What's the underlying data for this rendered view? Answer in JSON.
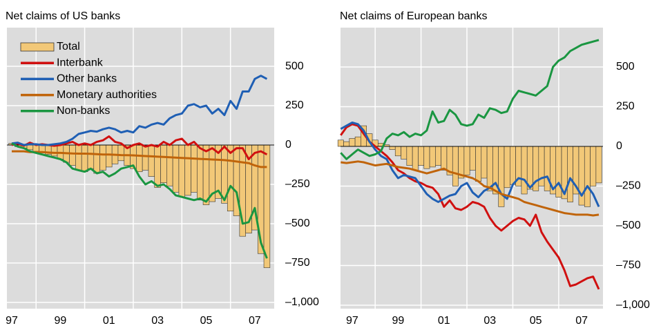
{
  "chart_data": [
    {
      "type": "bar_line",
      "title": "Net claims of US banks",
      "legend": "upper left",
      "x": [
        1997,
        1997.25,
        1997.5,
        1997.75,
        1998,
        1998.25,
        1998.5,
        1998.75,
        1999,
        1999.25,
        1999.5,
        1999.75,
        2000,
        2000.25,
        2000.5,
        2000.75,
        2001,
        2001.25,
        2001.5,
        2001.75,
        2002,
        2002.25,
        2002.5,
        2002.75,
        2003,
        2003.25,
        2003.5,
        2003.75,
        2004,
        2004.25,
        2004.5,
        2004.75,
        2005,
        2005.25,
        2005.5,
        2005.75,
        2006,
        2006.25,
        2006.5,
        2006.75,
        2007,
        2007.25,
        2007.5
      ],
      "xlim": [
        1996.8,
        2007.8
      ],
      "xticks": [
        {
          "value": 1997,
          "label": "97"
        },
        {
          "value": 1999,
          "label": "99"
        },
        {
          "value": 2001,
          "label": "01"
        },
        {
          "value": 2003,
          "label": "03"
        },
        {
          "value": 2005,
          "label": "05"
        },
        {
          "value": 2007,
          "label": "07"
        }
      ],
      "xgrid": [
        1998,
        2000,
        2002,
        2004,
        2006
      ],
      "ylim": [
        -1040,
        746
      ],
      "yticks": [
        500,
        250,
        0,
        {
          "value": -250,
          "label": "–250"
        },
        {
          "value": -500,
          "label": "–500"
        },
        {
          "value": -750,
          "label": "–750"
        },
        {
          "value": -1000,
          "label": "–1,000"
        }
      ],
      "series": [
        {
          "name": "Total",
          "type": "bar",
          "color": "#f2c878",
          "values": [
            10,
            -10,
            -20,
            -30,
            -40,
            -50,
            -60,
            -70,
            -90,
            -110,
            -130,
            -160,
            -170,
            -150,
            -180,
            -160,
            -140,
            -120,
            -100,
            -130,
            -150,
            -170,
            -160,
            -200,
            -270,
            -240,
            -260,
            -300,
            -330,
            -320,
            -300,
            -350,
            -380,
            -360,
            -340,
            -370,
            -420,
            -450,
            -580,
            -560,
            -540,
            -690,
            -780
          ]
        },
        {
          "name": "Interbank",
          "type": "line",
          "color": "#d01010",
          "values": [
            0,
            10,
            -5,
            15,
            0,
            5,
            0,
            -5,
            0,
            10,
            20,
            0,
            10,
            0,
            20,
            30,
            55,
            20,
            10,
            -20,
            0,
            10,
            -10,
            0,
            -10,
            20,
            0,
            30,
            40,
            0,
            20,
            -20,
            -40,
            -20,
            -50,
            -10,
            -50,
            -20,
            -20,
            -90,
            -50,
            -40,
            -60
          ]
        },
        {
          "name": "Other banks",
          "type": "line",
          "color": "#1f5fb4",
          "values": [
            10,
            15,
            0,
            5,
            5,
            0,
            0,
            5,
            10,
            20,
            40,
            70,
            80,
            90,
            85,
            100,
            110,
            100,
            80,
            90,
            80,
            120,
            110,
            130,
            140,
            130,
            170,
            190,
            200,
            250,
            260,
            240,
            250,
            200,
            230,
            190,
            280,
            230,
            340,
            340,
            420,
            440,
            420
          ]
        },
        {
          "name": "Monetary authorities",
          "type": "line",
          "color": "#c0640a",
          "values": [
            -40,
            -40,
            -40,
            -45,
            -45,
            -45,
            -48,
            -50,
            -50,
            -52,
            -54,
            -55,
            -55,
            -56,
            -58,
            -60,
            -60,
            -62,
            -64,
            -65,
            -66,
            -68,
            -70,
            -72,
            -74,
            -76,
            -78,
            -80,
            -82,
            -84,
            -86,
            -88,
            -90,
            -92,
            -94,
            -96,
            -100,
            -105,
            -110,
            -115,
            -130,
            -140,
            -140
          ]
        },
        {
          "name": "Non-banks",
          "type": "line",
          "color": "#1a9641",
          "values": [
            10,
            -10,
            -20,
            -40,
            -50,
            -60,
            -70,
            -80,
            -90,
            -110,
            -150,
            -160,
            -170,
            -150,
            -180,
            -170,
            -200,
            -180,
            -150,
            -140,
            -130,
            -200,
            -250,
            -230,
            -260,
            -250,
            -280,
            -320,
            -330,
            -340,
            -350,
            -340,
            -360,
            -310,
            -290,
            -350,
            -260,
            -300,
            -500,
            -490,
            -400,
            -620,
            -720
          ]
        }
      ]
    },
    {
      "type": "bar_line",
      "title": "Net claims of European banks",
      "x": [
        1996.5,
        1996.75,
        1997,
        1997.25,
        1997.5,
        1997.75,
        1998,
        1998.25,
        1998.5,
        1998.75,
        1999,
        1999.25,
        1999.5,
        1999.75,
        2000,
        2000.25,
        2000.5,
        2000.75,
        2001,
        2001.25,
        2001.5,
        2001.75,
        2002,
        2002.25,
        2002.5,
        2002.75,
        2003,
        2003.25,
        2003.5,
        2003.75,
        2004,
        2004.25,
        2004.5,
        2004.75,
        2005,
        2005.25,
        2005.5,
        2005.75,
        2006,
        2006.25,
        2006.5,
        2006.75,
        2007,
        2007.25,
        2007.5,
        2007.75
      ],
      "xlim": [
        1996.49,
        2007.93
      ],
      "xticks": [
        {
          "value": 1997,
          "label": "97"
        },
        {
          "value": 1999,
          "label": "99"
        },
        {
          "value": 2001,
          "label": "01"
        },
        {
          "value": 2003,
          "label": "03"
        },
        {
          "value": 2005,
          "label": "05"
        },
        {
          "value": 2007,
          "label": "07"
        }
      ],
      "xgrid": [
        1998,
        2000,
        2002,
        2004,
        2006
      ],
      "ylim": [
        -1022,
        748
      ],
      "yticks": [
        500,
        250,
        0,
        {
          "value": -250,
          "label": "–250"
        },
        {
          "value": -500,
          "label": "–500"
        },
        {
          "value": -750,
          "label": "–750"
        },
        {
          "value": -1000,
          "label": "–1,000"
        }
      ],
      "series": [
        {
          "name": "Total",
          "type": "bar",
          "color": "#f2c878",
          "values": [
            40,
            30,
            50,
            60,
            130,
            80,
            40,
            20,
            10,
            -20,
            -60,
            -80,
            -120,
            -150,
            -120,
            -140,
            -130,
            -120,
            -150,
            -180,
            -250,
            -200,
            -180,
            -150,
            -220,
            -200,
            -280,
            -300,
            -380,
            -260,
            -240,
            -250,
            -300,
            -270,
            -280,
            -250,
            -280,
            -300,
            -320,
            -330,
            -350,
            -300,
            -370,
            -380,
            -250,
            -230
          ]
        },
        {
          "name": "Interbank",
          "type": "line",
          "color": "#d01010",
          "values": [
            70,
            120,
            140,
            130,
            80,
            30,
            0,
            -30,
            -60,
            -100,
            -150,
            -170,
            -200,
            -220,
            -230,
            -250,
            -260,
            -300,
            -380,
            -340,
            -390,
            -400,
            -380,
            -350,
            -360,
            -380,
            -450,
            -500,
            -530,
            -500,
            -470,
            -450,
            -460,
            -500,
            -430,
            -540,
            -600,
            -650,
            -700,
            -780,
            -880,
            -870,
            -850,
            -830,
            -820,
            -900
          ]
        },
        {
          "name": "Other banks",
          "type": "line",
          "color": "#1f5fb4",
          "values": [
            110,
            130,
            150,
            140,
            100,
            30,
            -20,
            -60,
            -80,
            -150,
            -200,
            -180,
            -190,
            -200,
            -250,
            -300,
            -330,
            -350,
            -330,
            -310,
            -300,
            -250,
            -230,
            -290,
            -320,
            -280,
            -260,
            -230,
            -300,
            -330,
            -240,
            -200,
            -210,
            -260,
            -220,
            -200,
            -190,
            -270,
            -230,
            -300,
            -200,
            -250,
            -310,
            -250,
            -300,
            -380
          ]
        },
        {
          "name": "Monetary authorities",
          "type": "line",
          "color": "#c0640a",
          "values": [
            -100,
            -105,
            -100,
            -95,
            -100,
            -110,
            -120,
            -115,
            -110,
            -120,
            -130,
            -135,
            -140,
            -150,
            -160,
            -170,
            -160,
            -150,
            -140,
            -160,
            -170,
            -180,
            -190,
            -200,
            -220,
            -250,
            -260,
            -280,
            -300,
            -310,
            -320,
            -330,
            -350,
            -360,
            -370,
            -380,
            -390,
            -400,
            -410,
            -420,
            -425,
            -430,
            -430,
            -430,
            -435,
            -430
          ]
        },
        {
          "name": "Non-banks",
          "type": "line",
          "color": "#1a9641",
          "values": [
            -40,
            -80,
            -50,
            -20,
            -40,
            -60,
            -50,
            -30,
            50,
            80,
            70,
            90,
            60,
            80,
            70,
            100,
            220,
            150,
            160,
            230,
            200,
            140,
            130,
            140,
            200,
            180,
            240,
            230,
            210,
            220,
            300,
            350,
            340,
            330,
            320,
            350,
            380,
            500,
            540,
            560,
            600,
            620,
            640,
            650,
            660,
            670
          ]
        }
      ]
    }
  ]
}
